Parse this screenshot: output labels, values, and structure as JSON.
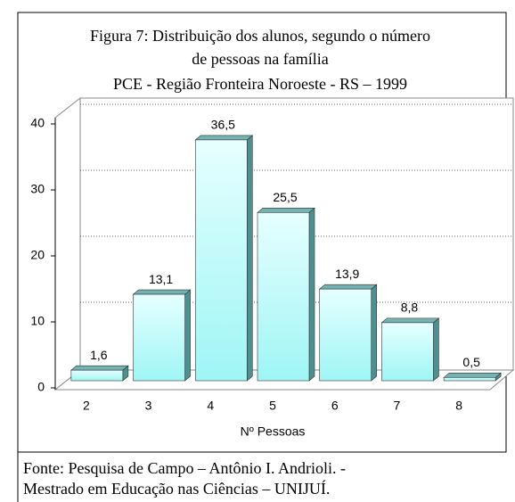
{
  "chart_data": {
    "type": "bar",
    "title": [
      "Figura 7: Distribuição dos alunos,  segundo  o  número",
      "de  pessoas na família"
    ],
    "subtitle": "PCE - Região Fronteira Noroeste - RS – 1999",
    "x_label": "Nº  Pessoas",
    "categories": [
      "2",
      "3",
      "4",
      "5",
      "6",
      "7",
      "8"
    ],
    "values": [
      1.6,
      13.1,
      36.5,
      25.5,
      13.9,
      8.8,
      0.5
    ],
    "value_labels": [
      "1,6",
      "13,1",
      "36,5",
      "25,5",
      "13,9",
      "8,8",
      "0,5"
    ],
    "color": "#b8fbfb",
    "ylim": [
      0,
      40
    ],
    "yticks": [
      0,
      10,
      20,
      30,
      40
    ],
    "grid": true,
    "source": [
      "Fonte: Pesquisa de Campo – Antônio I. Andrioli. -",
      "Mestrado em Educação nas Ciências – UNIJUÍ."
    ]
  }
}
